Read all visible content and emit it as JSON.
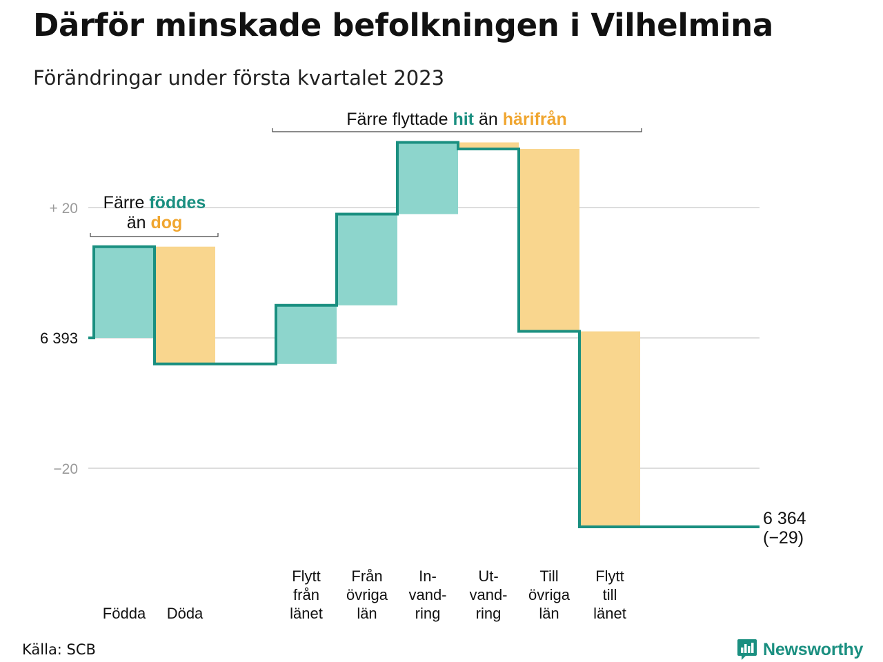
{
  "header": {
    "title": "Därför minskade befolkningen i Vilhelmina",
    "subtitle": "Förändringar under första kvartalet 2023"
  },
  "footer": {
    "source": "Källa: SCB",
    "brand": "Newsworthy",
    "brand_color": "#1a8f80",
    "brand_icon": "bar-chart-speech-icon"
  },
  "colors": {
    "increase": "#8dd5cc",
    "decrease": "#f9d68e",
    "line": "#1a8f80",
    "accent_teal": "#1a8f80",
    "accent_orange": "#f0a630",
    "grid": "#dddddd"
  },
  "annotations": {
    "births_deaths": {
      "line1_prefix": "Färre ",
      "line1_highlight": "föddes",
      "line2_prefix": "än ",
      "line2_highlight": "dog"
    },
    "moves": {
      "prefix": "Färre flyttade ",
      "highlight1": "hit",
      "middle": " än ",
      "highlight2": "härifrån"
    }
  },
  "chart_data": {
    "type": "waterfall",
    "title": "Därför minskade befolkningen i Vilhelmina",
    "subtitle": "Förändringar under första kvartalet 2023",
    "start_value": 6393,
    "start_label": "6 393",
    "end_value": 6364,
    "end_label": "6 364",
    "end_change_label": "(−29)",
    "yticks": [
      {
        "value": 20,
        "label": "+ 20"
      },
      {
        "value": 0,
        "label": "6 393"
      },
      {
        "value": -20,
        "label": "−20"
      }
    ],
    "ylim": [
      -33,
      31
    ],
    "grid": true,
    "categories": [
      {
        "label": [
          "Födda"
        ],
        "value": 14,
        "type": "increase"
      },
      {
        "label": [
          "Döda"
        ],
        "value": -18,
        "type": "decrease"
      },
      {
        "label": [],
        "value": 0,
        "type": "gap"
      },
      {
        "label": [
          "Flytt",
          "från",
          "länet"
        ],
        "value": 9,
        "type": "increase"
      },
      {
        "label": [
          "Från",
          "övriga",
          "län"
        ],
        "value": 14,
        "type": "increase"
      },
      {
        "label": [
          "In-",
          "vand-",
          "ring"
        ],
        "value": 11,
        "type": "increase"
      },
      {
        "label": [
          "Ut-",
          "vand-",
          "ring"
        ],
        "value": -1,
        "type": "decrease"
      },
      {
        "label": [
          "Till",
          "övriga",
          "län"
        ],
        "value": -28,
        "type": "decrease"
      },
      {
        "label": [
          "Flytt",
          "till",
          "länet"
        ],
        "value": -30,
        "type": "decrease"
      }
    ]
  }
}
